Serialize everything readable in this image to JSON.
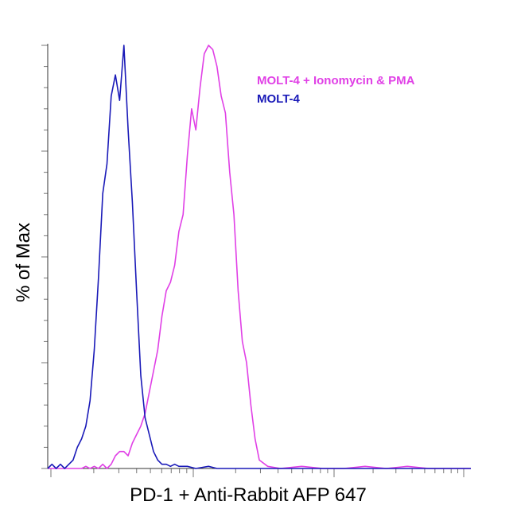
{
  "chart_data": {
    "type": "line",
    "title": "",
    "xlabel": "PD-1 + Anti-Rabbit AFP 647",
    "ylabel": "% of Max",
    "x_scale": "log",
    "xlim": [
      0,
      100
    ],
    "ylim": [
      0,
      100
    ],
    "grid": false,
    "legend_position": "top-right",
    "series": [
      {
        "name": "MOLT-4 + Ionomycin & PMA",
        "color": "#e040e6",
        "x": [
          0,
          8,
          9,
          10,
          11,
          12,
          13,
          14,
          15,
          16,
          17,
          18,
          19,
          20,
          21,
          22,
          23,
          24,
          25,
          26,
          27,
          28,
          29,
          30,
          31,
          32,
          33,
          34,
          35,
          36,
          37,
          38,
          39,
          40,
          41,
          42,
          43,
          44,
          45,
          46,
          47,
          48,
          49,
          50,
          52,
          55,
          60,
          65,
          70,
          75,
          80,
          85,
          90,
          100
        ],
        "y": [
          0,
          0,
          0.5,
          0,
          0.5,
          0,
          1,
          0,
          1,
          3,
          4,
          4,
          3,
          6,
          8,
          10,
          13,
          18,
          23,
          28,
          36,
          42,
          44,
          48,
          56,
          60,
          74,
          85,
          80,
          90,
          98,
          100,
          99,
          95,
          88,
          84,
          70,
          60,
          42,
          30,
          25,
          15,
          7,
          2,
          0.5,
          0,
          0.5,
          0,
          0,
          0.5,
          0,
          0.5,
          0,
          0
        ]
      },
      {
        "name": "MOLT-4",
        "color": "#1a1ab8",
        "x": [
          0,
          1,
          2,
          3,
          4,
          5,
          6,
          7,
          8,
          9,
          10,
          11,
          12,
          13,
          14,
          15,
          16,
          17,
          18,
          19,
          20,
          21,
          22,
          23,
          24,
          25,
          26,
          27,
          28,
          29,
          30,
          31,
          33,
          35,
          38,
          40,
          45,
          50,
          60,
          70,
          80,
          90,
          100
        ],
        "y": [
          0,
          1,
          0,
          1,
          0,
          1,
          2,
          5,
          7,
          10,
          16,
          28,
          45,
          65,
          72,
          88,
          93,
          87,
          100,
          80,
          63,
          42,
          22,
          12,
          8,
          4,
          2,
          1,
          1,
          0.5,
          1,
          0.5,
          0.5,
          0,
          0.5,
          0,
          0,
          0,
          0,
          0,
          0,
          0,
          0
        ]
      }
    ]
  }
}
